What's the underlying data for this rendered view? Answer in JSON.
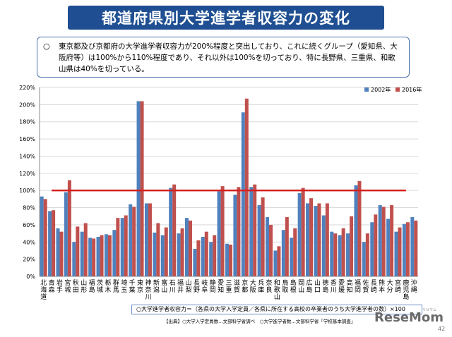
{
  "header": {
    "title": "都道府県別大学進学者収容力の変化"
  },
  "note": {
    "marker": "○",
    "text": "東京都及び京都府の大学進学者収容力が200%程度と突出しており、これに続くグループ（愛知県、大阪府等）は100%から110%程度であり、それ以外は100%を切っており、特に長野県、三重県、和歌山県は40%を切っている。"
  },
  "chart_data": {
    "type": "bar",
    "y_ticks": [
      "220%",
      "200%",
      "180%",
      "160%",
      "140%",
      "120%",
      "100%",
      "80%",
      "60%",
      "40%",
      "20%",
      "0%"
    ],
    "ylim": [
      0,
      220
    ],
    "grid": true,
    "legend_position": "top-right",
    "reference_line": 100,
    "categories": [
      "北海道",
      "青森",
      "岩手",
      "宮城",
      "秋田",
      "山形",
      "福島",
      "茨城",
      "栃木",
      "群馬",
      "埼玉",
      "千葉",
      "東京",
      "神奈川",
      "新潟",
      "富山",
      "石川",
      "福井",
      "山梨",
      "長野",
      "岐阜",
      "静岡",
      "愛知",
      "三重",
      "滋賀",
      "京都",
      "大阪",
      "兵庫",
      "奈良",
      "和歌山",
      "鳥取",
      "島根",
      "岡山",
      "広島",
      "山口",
      "徳島",
      "香川",
      "愛媛",
      "高知",
      "福岡",
      "佐賀",
      "長崎",
      "熊本",
      "大分",
      "宮崎",
      "鹿児島",
      "沖縄"
    ],
    "series": [
      {
        "name": "2002年",
        "color": "#4f81bd",
        "values": [
          93,
          76,
          56,
          98,
          40,
          52,
          45,
          46,
          49,
          54,
          68,
          84,
          204,
          85,
          51,
          48,
          103,
          50,
          68,
          32,
          46,
          40,
          99,
          38,
          95,
          191,
          104,
          83,
          69,
          30,
          54,
          45,
          97,
          85,
          82,
          71,
          52,
          48,
          50,
          106,
          40,
          63,
          83,
          67,
          52,
          61,
          69
        ]
      },
      {
        "name": "2016年",
        "color": "#c0504d",
        "values": [
          90,
          77,
          52,
          112,
          58,
          62,
          44,
          48,
          48,
          68,
          71,
          81,
          204,
          85,
          62,
          57,
          107,
          56,
          65,
          42,
          52,
          48,
          105,
          37,
          104,
          207,
          107,
          92,
          60,
          35,
          69,
          56,
          103,
          91,
          85,
          85,
          50,
          56,
          70,
          111,
          50,
          72,
          81,
          83,
          57,
          63,
          65
        ]
      }
    ]
  },
  "footer": {
    "formula": "○大学進学者収容力＝（各県の大学入学定員／各県に所在する高校の卒業者のうち大学進学者の数）×100",
    "source": "【出典】○大学入学定員数…文部科学省調べ　○大学進学者数…文部科学省「学校基本調査」",
    "logo": "ReseMom",
    "logo_sub": "リセマム",
    "page_number": "42"
  }
}
